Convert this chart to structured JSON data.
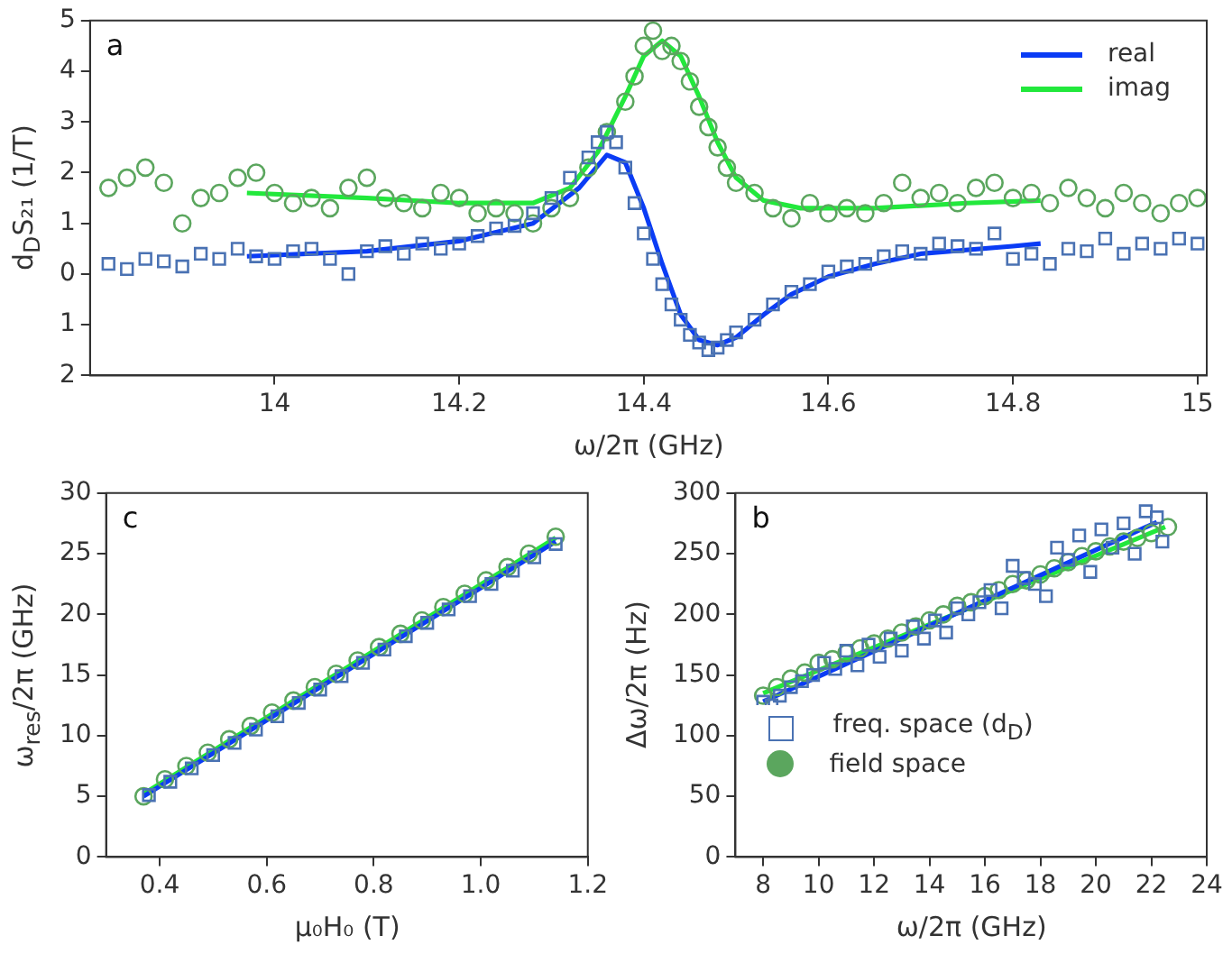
{
  "chart_data": [
    {
      "type": "scatter",
      "xlabel": "ω/2π (GHz)",
      "ylabel": "d$_{D}$S₂₁ (1/T)",
      "annotations": [
        "a"
      ],
      "legend": "top right",
      "xlim": [
        13.8,
        15.01
      ],
      "xticks": [
        14,
        14.2,
        14.4,
        14.6,
        14.8,
        15
      ],
      "ylim": [
        -2,
        5
      ],
      "yticks": [
        {
          "value": -2,
          "label": "2"
        },
        {
          "value": -1,
          "label": "1"
        },
        0,
        1,
        2,
        3,
        4,
        5
      ],
      "series": [
        {
          "type": "scatter",
          "marker": "square",
          "color": "#4a72b3",
          "x": [
            13.82,
            13.84,
            13.86,
            13.88,
            13.9,
            13.92,
            13.94,
            13.96,
            13.98,
            14.0,
            14.02,
            14.04,
            14.06,
            14.08,
            14.1,
            14.12,
            14.14,
            14.16,
            14.18,
            14.2,
            14.22,
            14.24,
            14.26,
            14.28,
            14.3,
            14.32,
            14.34,
            14.35,
            14.36,
            14.37,
            14.38,
            14.39,
            14.4,
            14.41,
            14.42,
            14.43,
            14.44,
            14.45,
            14.46,
            14.47,
            14.48,
            14.49,
            14.5,
            14.52,
            14.54,
            14.56,
            14.58,
            14.6,
            14.62,
            14.64,
            14.66,
            14.68,
            14.7,
            14.72,
            14.74,
            14.76,
            14.78,
            14.8,
            14.82,
            14.84,
            14.86,
            14.88,
            14.9,
            14.92,
            14.94,
            14.96,
            14.98,
            15.0
          ],
          "values": [
            0.2,
            0.1,
            0.3,
            0.25,
            0.15,
            0.4,
            0.3,
            0.5,
            0.35,
            0.3,
            0.45,
            0.5,
            0.3,
            0.0,
            0.45,
            0.55,
            0.4,
            0.6,
            0.5,
            0.6,
            0.75,
            0.9,
            0.95,
            1.2,
            1.5,
            1.9,
            2.3,
            2.6,
            2.8,
            2.6,
            2.1,
            1.4,
            0.8,
            0.3,
            -0.2,
            -0.6,
            -0.9,
            -1.2,
            -1.35,
            -1.5,
            -1.45,
            -1.3,
            -1.15,
            -0.9,
            -0.6,
            -0.35,
            -0.2,
            0.05,
            0.15,
            0.2,
            0.35,
            0.45,
            0.4,
            0.6,
            0.55,
            0.5,
            0.8,
            0.3,
            0.4,
            0.2,
            0.5,
            0.45,
            0.7,
            0.4,
            0.6,
            0.5,
            0.7,
            0.6
          ]
        },
        {
          "type": "scatter",
          "marker": "circle",
          "color": "#5ba65e",
          "x": [
            13.82,
            13.84,
            13.86,
            13.88,
            13.9,
            13.92,
            13.94,
            13.96,
            13.98,
            14.0,
            14.02,
            14.04,
            14.06,
            14.08,
            14.1,
            14.12,
            14.14,
            14.16,
            14.18,
            14.2,
            14.22,
            14.24,
            14.26,
            14.28,
            14.3,
            14.32,
            14.34,
            14.36,
            14.38,
            14.39,
            14.4,
            14.41,
            14.42,
            14.43,
            14.44,
            14.45,
            14.46,
            14.47,
            14.48,
            14.49,
            14.5,
            14.52,
            14.54,
            14.56,
            14.58,
            14.6,
            14.62,
            14.64,
            14.66,
            14.68,
            14.7,
            14.72,
            14.74,
            14.76,
            14.78,
            14.8,
            14.82,
            14.84,
            14.86,
            14.88,
            14.9,
            14.92,
            14.94,
            14.96,
            14.98,
            15.0
          ],
          "values": [
            1.7,
            1.9,
            2.1,
            1.8,
            1.0,
            1.5,
            1.6,
            1.9,
            2.0,
            1.6,
            1.4,
            1.5,
            1.3,
            1.7,
            1.9,
            1.5,
            1.4,
            1.3,
            1.6,
            1.5,
            1.2,
            1.3,
            1.2,
            1.0,
            1.3,
            1.5,
            2.1,
            2.8,
            3.4,
            3.9,
            4.5,
            4.8,
            4.4,
            4.5,
            4.2,
            3.8,
            3.3,
            2.9,
            2.5,
            2.1,
            1.8,
            1.6,
            1.3,
            1.1,
            1.4,
            1.2,
            1.3,
            1.2,
            1.4,
            1.8,
            1.5,
            1.6,
            1.4,
            1.7,
            1.8,
            1.5,
            1.6,
            1.4,
            1.7,
            1.5,
            1.3,
            1.6,
            1.4,
            1.2,
            1.4,
            1.5
          ]
        },
        {
          "type": "line",
          "name": "real",
          "marker": "none",
          "color": "#0a3cf5",
          "x": [
            13.97,
            14.1,
            14.2,
            14.28,
            14.33,
            14.36,
            14.38,
            14.4,
            14.42,
            14.44,
            14.46,
            14.48,
            14.5,
            14.53,
            14.56,
            14.6,
            14.65,
            14.7,
            14.8,
            14.83
          ],
          "values": [
            0.35,
            0.45,
            0.65,
            1.0,
            1.7,
            2.35,
            2.2,
            1.3,
            0.2,
            -0.8,
            -1.3,
            -1.4,
            -1.25,
            -0.8,
            -0.4,
            -0.05,
            0.2,
            0.4,
            0.55,
            0.6
          ]
        },
        {
          "type": "line",
          "name": "imag",
          "marker": "none",
          "color": "#22e83c",
          "x": [
            13.97,
            14.1,
            14.2,
            14.28,
            14.32,
            14.35,
            14.38,
            14.4,
            14.42,
            14.44,
            14.46,
            14.48,
            14.5,
            14.53,
            14.57,
            14.65,
            14.75,
            14.83
          ],
          "values": [
            1.6,
            1.5,
            1.4,
            1.4,
            1.7,
            2.4,
            3.5,
            4.3,
            4.6,
            4.3,
            3.5,
            2.6,
            1.9,
            1.45,
            1.3,
            1.3,
            1.4,
            1.45
          ]
        }
      ]
    },
    {
      "type": "scatter",
      "xlabel": "μ₀H₀ (T)",
      "ylabel": "ω$_{res}$/2π (GHz)",
      "annotations": [
        "c"
      ],
      "xlim": [
        0.3,
        1.2
      ],
      "xticks": [
        0.4,
        0.6,
        0.8,
        {
          "value": 1,
          "label": "1.0"
        },
        1.2
      ],
      "ylim": [
        0,
        30
      ],
      "yticks": [
        0,
        5,
        10,
        15,
        20,
        25,
        30
      ],
      "series": [
        {
          "type": "scatter",
          "marker": "square",
          "color": "#4a72b3",
          "x": [
            0.38,
            0.42,
            0.46,
            0.5,
            0.54,
            0.58,
            0.62,
            0.66,
            0.7,
            0.74,
            0.78,
            0.82,
            0.86,
            0.9,
            0.94,
            0.98,
            1.02,
            1.06,
            1.1,
            1.14
          ],
          "values": [
            5.1,
            6.2,
            7.3,
            8.4,
            9.4,
            10.5,
            11.6,
            12.7,
            13.8,
            14.9,
            16.0,
            17.1,
            18.2,
            19.3,
            20.4,
            21.5,
            22.5,
            23.6,
            24.7,
            25.8
          ]
        },
        {
          "type": "scatter",
          "marker": "circle",
          "color": "#5ba65e",
          "x": [
            0.37,
            0.41,
            0.45,
            0.49,
            0.53,
            0.57,
            0.61,
            0.65,
            0.69,
            0.73,
            0.77,
            0.81,
            0.85,
            0.89,
            0.93,
            0.97,
            1.01,
            1.05,
            1.09,
            1.14
          ],
          "values": [
            5.0,
            6.4,
            7.5,
            8.6,
            9.7,
            10.8,
            11.9,
            12.9,
            14.0,
            15.1,
            16.2,
            17.3,
            18.4,
            19.5,
            20.6,
            21.7,
            22.8,
            23.9,
            25.0,
            26.4
          ]
        },
        {
          "type": "line",
          "marker": "none",
          "color": "#0a3cf5",
          "x": [
            0.37,
            1.14
          ],
          "values": [
            5.0,
            26.0
          ]
        },
        {
          "type": "line",
          "marker": "none",
          "color": "#22e83c",
          "x": [
            0.37,
            1.14
          ],
          "values": [
            5.2,
            26.3
          ]
        }
      ]
    },
    {
      "type": "scatter",
      "xlabel": "ω/2π (GHz)",
      "ylabel": "Δω/2π (Hz)",
      "annotations": [
        "b"
      ],
      "legend": "bottom left",
      "xlim": [
        7,
        24
      ],
      "xticks": [
        8,
        10,
        12,
        14,
        16,
        18,
        20,
        22,
        24
      ],
      "ylim": [
        0,
        300
      ],
      "yticks": [
        0,
        50,
        100,
        150,
        200,
        250,
        300
      ],
      "series": [
        {
          "type": "scatter",
          "name": "freq. space (d$_{D}$)",
          "marker": "square",
          "color": "#4a72b3",
          "x": [
            8.0,
            8.3,
            8.6,
            9.0,
            9.4,
            9.8,
            10.2,
            10.6,
            11.0,
            11.4,
            11.8,
            12.2,
            12.6,
            13.0,
            13.4,
            13.8,
            14.2,
            14.6,
            15.0,
            15.4,
            15.8,
            16.2,
            16.6,
            17.0,
            17.4,
            17.8,
            18.2,
            18.6,
            19.0,
            19.4,
            19.8,
            20.2,
            20.6,
            21.0,
            21.4,
            21.8,
            22.2,
            22.4
          ],
          "values": [
            128,
            125,
            133,
            140,
            145,
            150,
            160,
            155,
            170,
            158,
            175,
            165,
            180,
            170,
            190,
            180,
            195,
            185,
            205,
            200,
            210,
            220,
            205,
            240,
            230,
            225,
            215,
            255,
            245,
            265,
            235,
            270,
            255,
            275,
            250,
            285,
            280,
            260
          ]
        },
        {
          "type": "scatter",
          "name": "field space",
          "marker": "circle",
          "color": "#5ba65e",
          "x": [
            8.0,
            8.5,
            9.0,
            9.5,
            10,
            10.5,
            11,
            11.5,
            12,
            12.5,
            13,
            13.5,
            14,
            14.5,
            15,
            15.5,
            16,
            16.5,
            17,
            17.5,
            18,
            18.5,
            19,
            19.5,
            20,
            20.5,
            21,
            21.5,
            22,
            22.6
          ],
          "values": [
            133,
            140,
            147,
            152,
            160,
            163,
            168,
            172,
            176,
            180,
            185,
            190,
            195,
            200,
            207,
            210,
            215,
            220,
            225,
            228,
            233,
            238,
            243,
            248,
            252,
            256,
            260,
            263,
            267,
            272
          ]
        },
        {
          "type": "line",
          "marker": "none",
          "color": "#0a3cf5",
          "x": [
            8,
            22.2
          ],
          "values": [
            128,
            276
          ]
        },
        {
          "type": "line",
          "marker": "none",
          "color": "#22e83c",
          "x": [
            8,
            22.5
          ],
          "values": [
            135,
            272
          ]
        }
      ]
    }
  ]
}
